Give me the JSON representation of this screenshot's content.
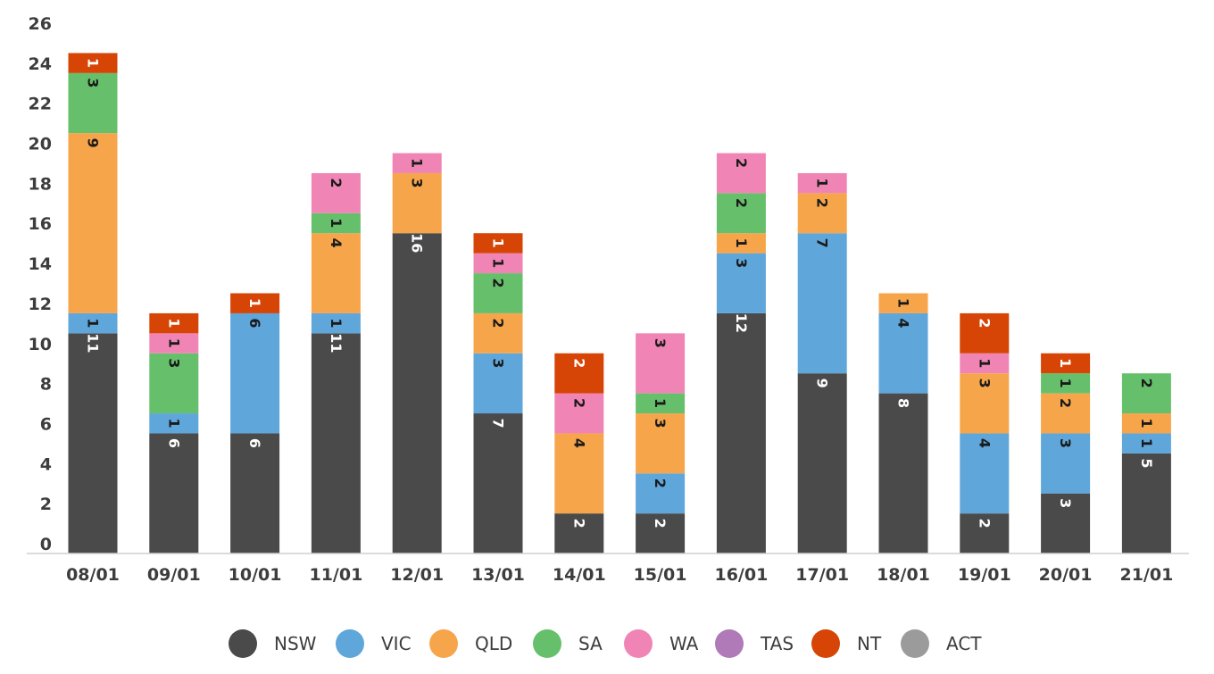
{
  "chart_data": {
    "type": "bar",
    "stacked": true,
    "categories": [
      "08/01",
      "09/01",
      "10/01",
      "11/01",
      "12/01",
      "13/01",
      "14/01",
      "15/01",
      "16/01",
      "17/01",
      "18/01",
      "19/01",
      "20/01",
      "21/01"
    ],
    "series": [
      {
        "name": "NSW",
        "color": "#4a4a4a",
        "label_color": "#ffffff",
        "values": [
          11,
          6,
          6,
          11,
          16,
          7,
          2,
          2,
          12,
          9,
          8,
          2,
          3,
          5
        ]
      },
      {
        "name": "VIC",
        "color": "#5fa6db",
        "label_color": "#1a1a1a",
        "values": [
          1,
          1,
          6,
          1,
          0,
          3,
          0,
          2,
          3,
          7,
          4,
          4,
          3,
          1
        ]
      },
      {
        "name": "QLD",
        "color": "#f7a54b",
        "label_color": "#1a1a1a",
        "values": [
          9,
          0,
          0,
          4,
          3,
          2,
          4,
          3,
          1,
          2,
          1,
          3,
          2,
          1
        ]
      },
      {
        "name": "SA",
        "color": "#66c06b",
        "label_color": "#1a1a1a",
        "values": [
          3,
          3,
          0,
          1,
          0,
          2,
          0,
          1,
          2,
          0,
          0,
          0,
          1,
          2
        ]
      },
      {
        "name": "WA",
        "color": "#f085b5",
        "label_color": "#1a1a1a",
        "values": [
          0,
          1,
          0,
          2,
          1,
          1,
          2,
          3,
          2,
          1,
          0,
          1,
          0,
          0
        ]
      },
      {
        "name": "TAS",
        "color": "#b07ab8",
        "label_color": "#1a1a1a",
        "values": [
          0,
          0,
          0,
          0,
          0,
          0,
          0,
          0,
          0,
          0,
          0,
          0,
          0,
          0
        ]
      },
      {
        "name": "NT",
        "color": "#d64406",
        "label_color": "#ffffff",
        "values": [
          1,
          1,
          1,
          0,
          0,
          1,
          2,
          0,
          0,
          0,
          0,
          2,
          1,
          0
        ]
      },
      {
        "name": "ACT",
        "color": "#9b9b9b",
        "label_color": "#1a1a1a",
        "values": [
          0,
          0,
          0,
          0,
          0,
          0,
          0,
          0,
          0,
          0,
          0,
          0,
          0,
          0
        ]
      }
    ],
    "ylim": [
      0,
      26
    ],
    "yticks": [
      0,
      2,
      4,
      6,
      8,
      10,
      12,
      14,
      16,
      18,
      20,
      22,
      24,
      26
    ],
    "grid": false,
    "legend": "bottom"
  }
}
